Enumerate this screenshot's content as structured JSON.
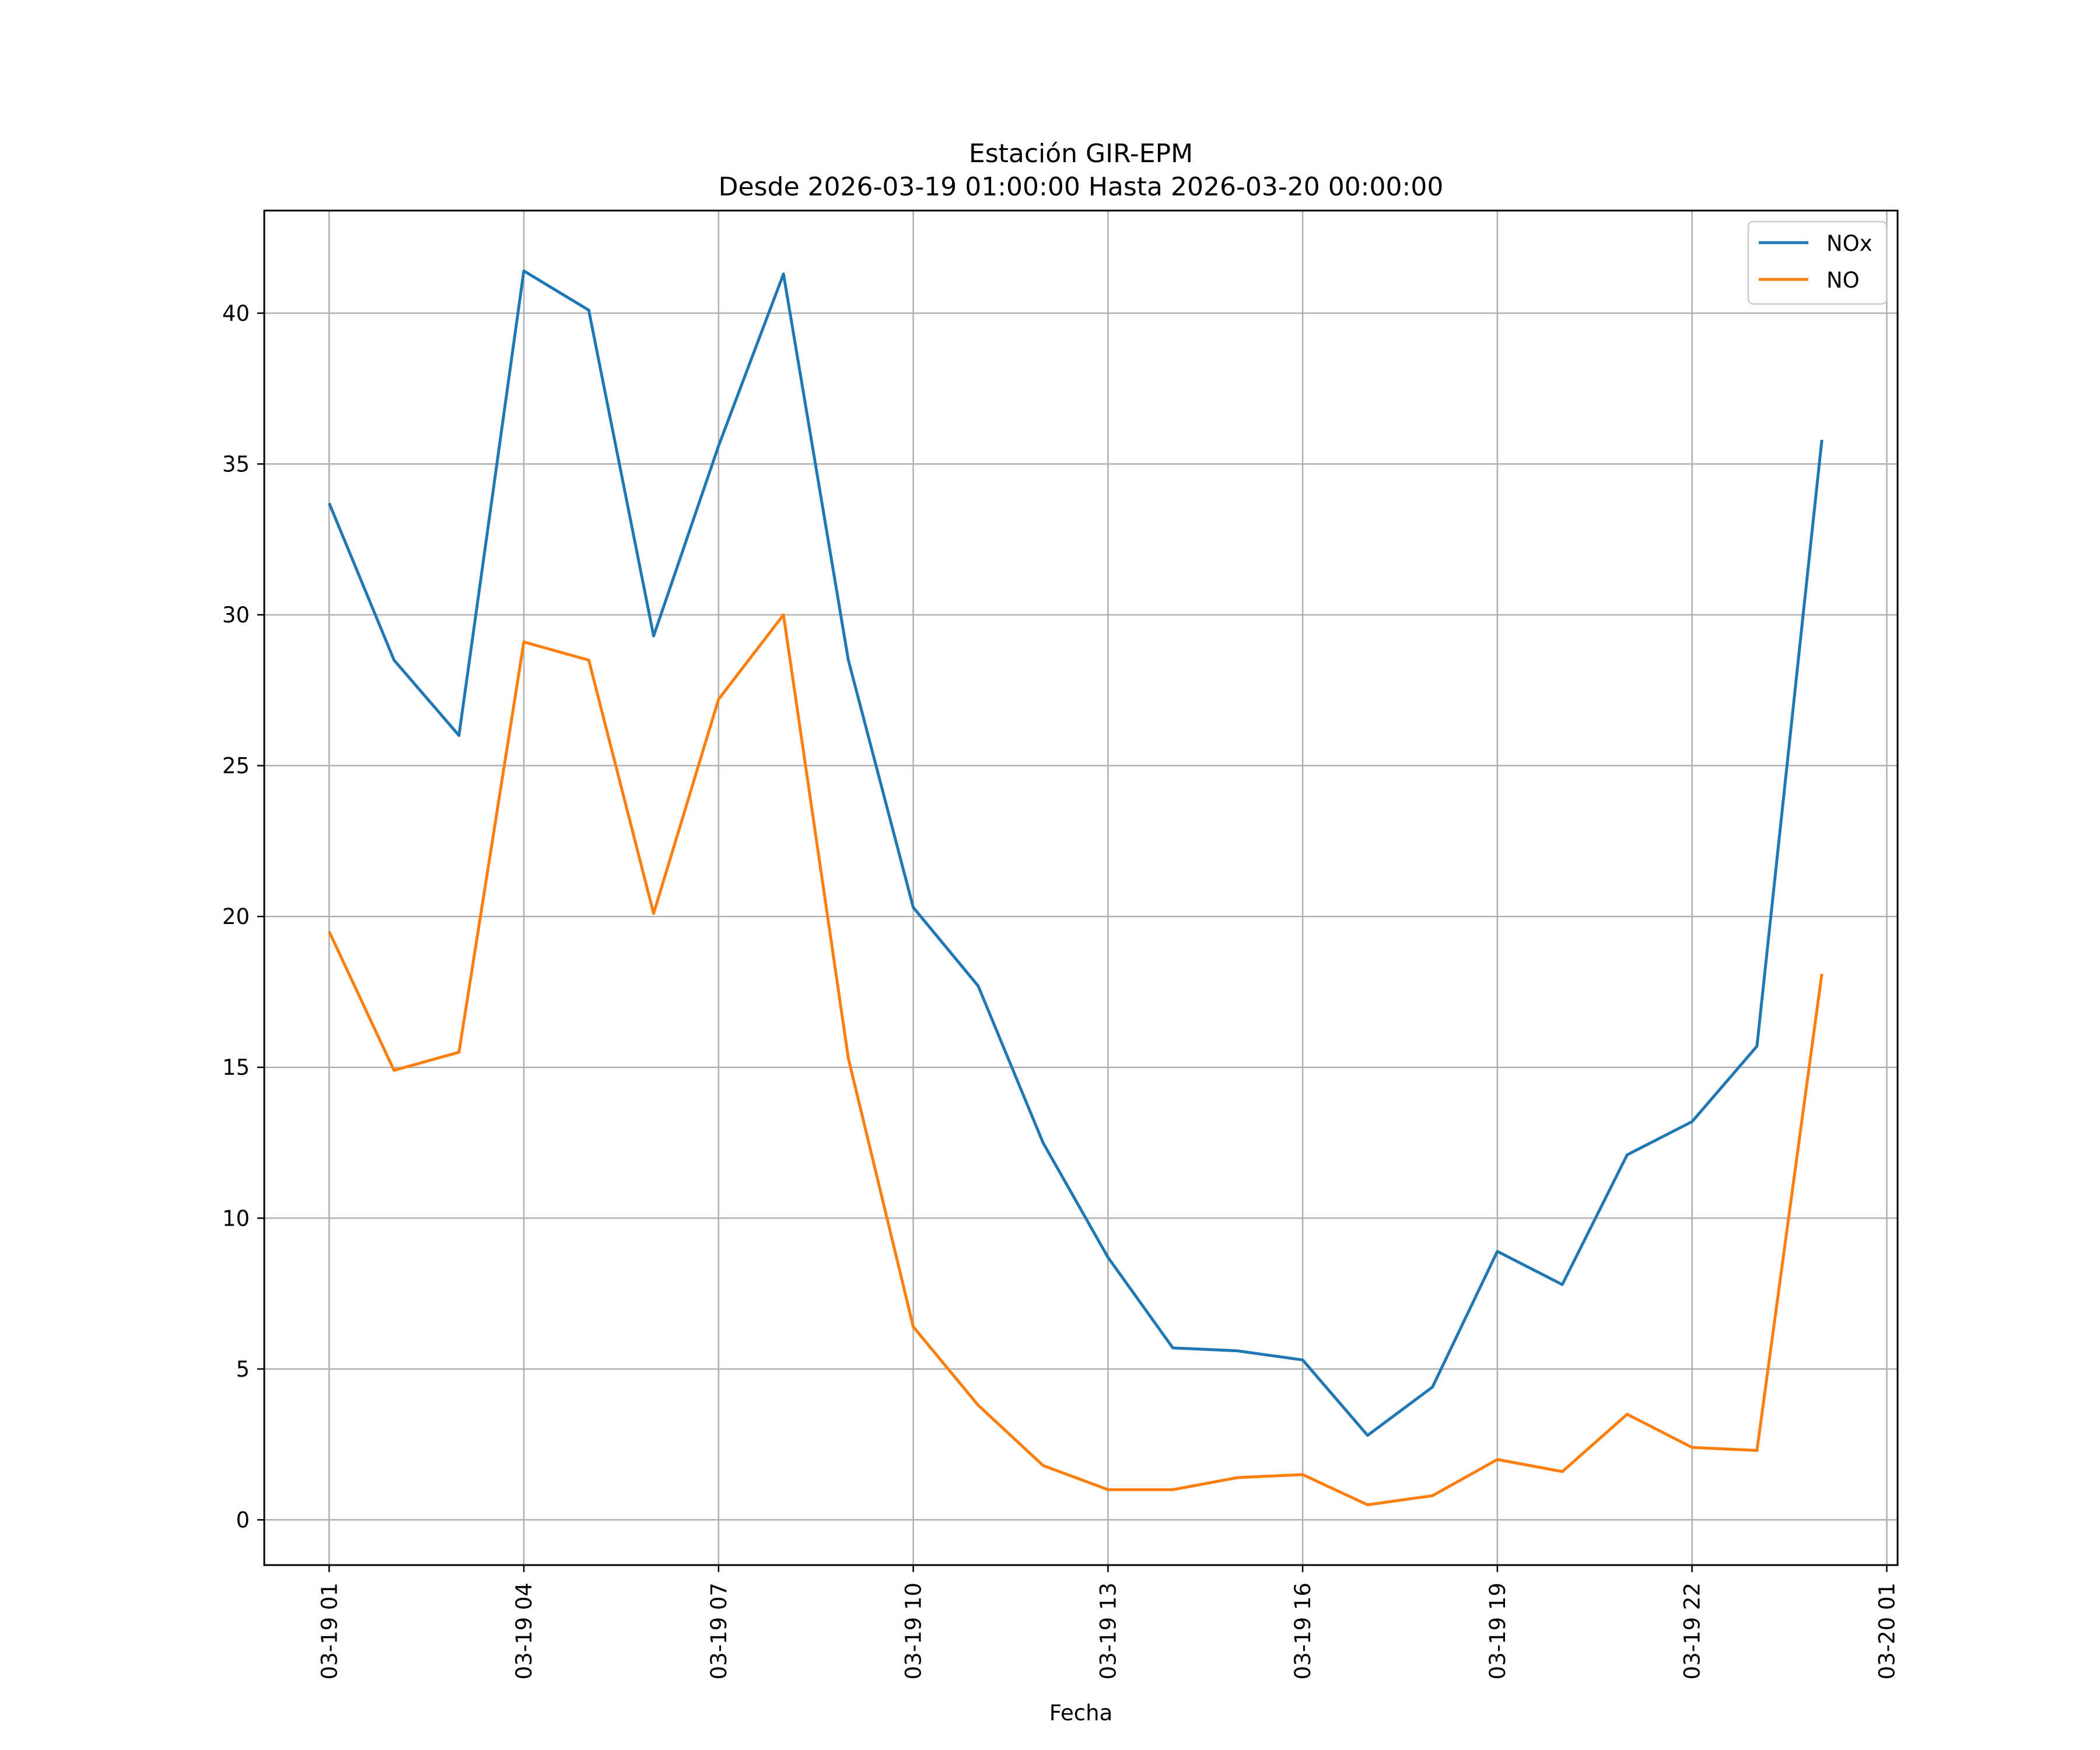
{
  "chart_data": {
    "type": "line",
    "title": "Estación GIR-EPM",
    "subtitle": "Desde 2026-03-19 01:00:00 Hasta 2026-03-20 00:00:00",
    "xlabel": "Fecha",
    "ylabel": "",
    "x": [
      "2026-03-19 01:00",
      "2026-03-19 02:00",
      "2026-03-19 03:00",
      "2026-03-19 04:00",
      "2026-03-19 05:00",
      "2026-03-19 06:00",
      "2026-03-19 07:00",
      "2026-03-19 08:00",
      "2026-03-19 09:00",
      "2026-03-19 10:00",
      "2026-03-19 11:00",
      "2026-03-19 12:00",
      "2026-03-19 13:00",
      "2026-03-19 14:00",
      "2026-03-19 15:00",
      "2026-03-19 16:00",
      "2026-03-19 17:00",
      "2026-03-19 18:00",
      "2026-03-19 19:00",
      "2026-03-19 20:00",
      "2026-03-19 21:00",
      "2026-03-19 22:00",
      "2026-03-19 23:00",
      "2026-03-20 00:00"
    ],
    "xlim": [
      "2026-03-19 00:00",
      "2026-03-20 01:10"
    ],
    "ylim": [
      -1.5,
      43.4
    ],
    "x_ticks": [
      {
        "x": "2026-03-19 01:00",
        "label": "03-19 01"
      },
      {
        "x": "2026-03-19 04:00",
        "label": "03-19 04"
      },
      {
        "x": "2026-03-19 07:00",
        "label": "03-19 07"
      },
      {
        "x": "2026-03-19 10:00",
        "label": "03-19 10"
      },
      {
        "x": "2026-03-19 13:00",
        "label": "03-19 13"
      },
      {
        "x": "2026-03-19 16:00",
        "label": "03-19 16"
      },
      {
        "x": "2026-03-19 19:00",
        "label": "03-19 19"
      },
      {
        "x": "2026-03-19 22:00",
        "label": "03-19 22"
      },
      {
        "x": "2026-03-20 01:00",
        "label": "03-20 01"
      }
    ],
    "y_ticks": [
      0,
      5,
      10,
      15,
      20,
      25,
      30,
      35,
      40
    ],
    "grid": true,
    "legend_position": "top-right",
    "series": [
      {
        "name": "NOx",
        "color": "#1f77b4",
        "values": [
          33.7,
          28.5,
          26.0,
          41.4,
          40.1,
          29.3,
          35.6,
          41.3,
          28.5,
          20.3,
          17.7,
          12.5,
          8.7,
          5.7,
          5.6,
          5.3,
          2.8,
          4.4,
          8.9,
          7.8,
          12.1,
          13.2,
          15.7,
          35.8
        ]
      },
      {
        "name": "NO",
        "color": "#ff7f0e",
        "values": [
          19.5,
          14.9,
          15.5,
          29.1,
          28.5,
          20.1,
          27.2,
          30.0,
          15.3,
          6.4,
          3.8,
          1.8,
          1.0,
          1.0,
          1.4,
          1.5,
          0.5,
          0.8,
          2.0,
          1.6,
          3.5,
          2.4,
          2.3,
          18.1
        ]
      }
    ]
  }
}
